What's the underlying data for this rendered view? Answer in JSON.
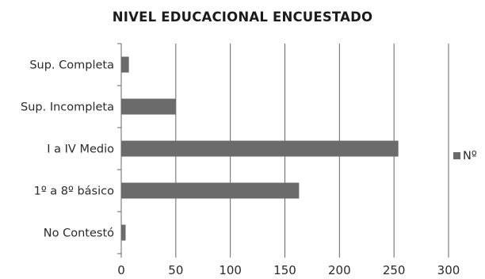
{
  "chart_data": {
    "type": "bar",
    "orientation": "horizontal",
    "title": "NIVEL EDUCACIONAL ENCUESTADO",
    "categories": [
      "No Contestó",
      "1º  a 8º básico",
      "I a IV Medio",
      "Sup. Incompleta",
      "Sup. Completa"
    ],
    "series": [
      {
        "name": "Nº",
        "values": [
          4,
          163,
          254,
          50,
          7
        ]
      }
    ],
    "xlim": [
      0,
      300
    ],
    "xticks": [
      "0",
      "50",
      "100",
      "150",
      "200",
      "250",
      "300"
    ],
    "xlabel": "",
    "ylabel": "",
    "grid": "vertical",
    "legend": "right",
    "bar_color": "#6b6b6b",
    "grid_color": "#666666"
  }
}
